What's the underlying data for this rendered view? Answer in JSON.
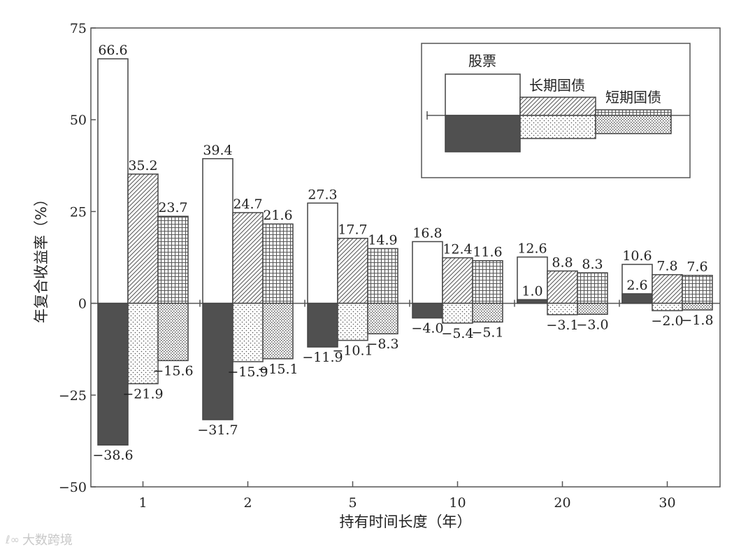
{
  "chart_data": {
    "type": "bar",
    "title": "",
    "xlabel": "持有时间长度（年）",
    "ylabel": "年复合收益率（%）",
    "ylim": [
      -50,
      75
    ],
    "yticks": [
      "75",
      "50",
      "25",
      "0",
      "−25",
      "−50"
    ],
    "ytick_values": [
      75,
      50,
      25,
      0,
      -25,
      -50
    ],
    "categories": [
      "1",
      "2",
      "5",
      "10",
      "20",
      "30"
    ],
    "series": [
      {
        "name": "股票",
        "max": [
          66.6,
          39.4,
          27.3,
          16.8,
          12.6,
          10.6
        ],
        "min": [
          -38.6,
          -31.7,
          -11.9,
          -4.0,
          1.0,
          2.6
        ],
        "max_labels": [
          "66.6",
          "39.4",
          "27.3",
          "16.8",
          "12.6",
          "10.6"
        ],
        "min_labels": [
          "−38.6",
          "−31.7",
          "−11.9",
          "−4.0",
          "1.0",
          "2.6"
        ]
      },
      {
        "name": "长期国债",
        "max": [
          35.2,
          24.7,
          17.7,
          12.4,
          8.8,
          7.8
        ],
        "min": [
          -21.9,
          -15.9,
          -10.1,
          -5.4,
          -3.1,
          -2.0
        ],
        "max_labels": [
          "35.2",
          "24.7",
          "17.7",
          "12.4",
          "8.8",
          "7.8"
        ],
        "min_labels": [
          "−21.9",
          "−15.9",
          "−10.1",
          "−5.4",
          "−3.1",
          "−2.0"
        ]
      },
      {
        "name": "短期国债",
        "max": [
          23.7,
          21.6,
          14.9,
          11.6,
          8.3,
          7.6
        ],
        "min": [
          -15.6,
          -15.1,
          -8.3,
          -5.1,
          -3.0,
          -1.8
        ],
        "max_labels": [
          "23.7",
          "21.6",
          "14.9",
          "11.6",
          "8.3",
          "7.6"
        ],
        "min_labels": [
          "−15.6",
          "−15.1",
          "−8.3",
          "−5.1",
          "−3.0",
          "−1.8"
        ]
      }
    ],
    "legend": {
      "position": "top-right"
    },
    "grid": false
  },
  "watermark": {
    "text": "大数跨境",
    "logo": "ℓ∞"
  }
}
